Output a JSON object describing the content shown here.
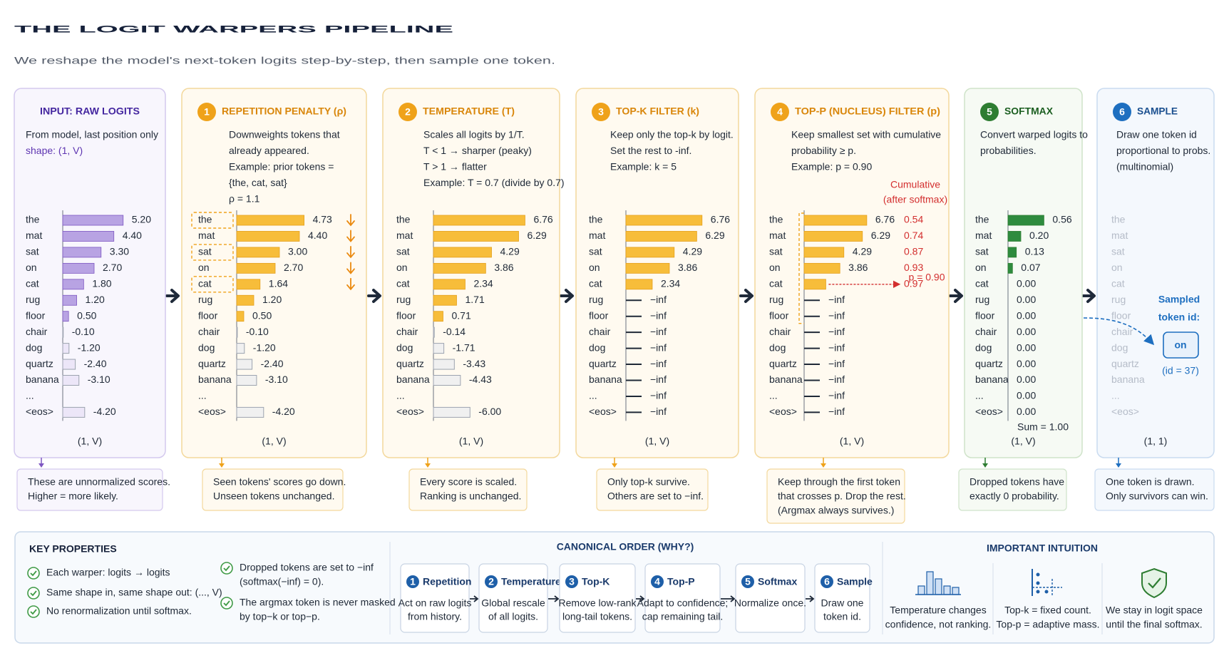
{
  "title": "THE LOGIT WARPERS PIPELINE",
  "subtitle": "We reshape the model's next-token logits step-by-step, then sample one token.",
  "tokens": [
    "the",
    "mat",
    "sat",
    "on",
    "cat",
    "rug",
    "floor",
    "chair",
    "dog",
    "quartz",
    "banana",
    "...",
    "<eos>"
  ],
  "panels": [
    {
      "heading": "INPUT: RAW LOGITS",
      "lines": [
        "From model, last position only",
        "shape: (1, V)"
      ],
      "values": [
        5.2,
        4.4,
        3.3,
        2.7,
        1.8,
        1.2,
        0.5,
        -0.1,
        -1.2,
        -2.4,
        -3.1,
        null,
        -4.2
      ],
      "value_labels": [
        "5.20",
        "4.40",
        "3.30",
        "2.70",
        "1.80",
        "1.20",
        "0.50",
        "-0.10",
        "-1.20",
        "-2.40",
        "-3.10",
        null,
        "-4.20"
      ],
      "shape": "(1, V)",
      "note": [
        "These are unnormalized scores.",
        "Higher = more likely."
      ]
    },
    {
      "step": "1",
      "heading": "REPETITION PENALTY (ρ)",
      "lines": [
        "Downweights tokens that",
        "already appeared.",
        "Example: prior tokens =",
        "{the, cat, sat}",
        "ρ = 1.1"
      ],
      "values": [
        4.73,
        4.4,
        3.0,
        2.7,
        1.64,
        1.2,
        0.5,
        -0.1,
        -1.2,
        -2.4,
        -3.1,
        null,
        -4.2
      ],
      "value_labels": [
        "4.73",
        "4.40",
        "3.00",
        "2.70",
        "1.64",
        "1.20",
        "0.50",
        "-0.10",
        "-1.20",
        "-2.40",
        "-3.10",
        null,
        "-4.20"
      ],
      "shape": "(1, V)",
      "note": [
        "Seen tokens' scores go down.",
        "Unseen tokens unchanged."
      ]
    },
    {
      "step": "2",
      "heading": "TEMPERATURE (T)",
      "lines": [
        "Scales all logits by 1/T.",
        "T < 1  →  sharper (peaky)",
        "T > 1  →  flatter",
        "Example: T = 0.7 (divide by 0.7)"
      ],
      "values": [
        6.76,
        6.29,
        4.29,
        3.86,
        2.34,
        1.71,
        0.71,
        -0.14,
        -1.71,
        -3.43,
        -4.43,
        null,
        -6.0
      ],
      "value_labels": [
        "6.76",
        "6.29",
        "4.29",
        "3.86",
        "2.34",
        "1.71",
        "0.71",
        "-0.14",
        "-1.71",
        "-3.43",
        "-4.43",
        null,
        "-6.00"
      ],
      "shape": "(1, V)",
      "note": [
        "Every score is scaled.",
        "Ranking is unchanged."
      ]
    },
    {
      "step": "3",
      "heading": "TOP-K FILTER (k)",
      "lines": [
        "Keep only the top-k by logit.",
        "Set the rest to -inf.",
        "Example: k = 5"
      ],
      "values": [
        6.76,
        6.29,
        4.29,
        3.86,
        2.34,
        null,
        null,
        null,
        null,
        null,
        null,
        null,
        null
      ],
      "value_labels": [
        "6.76",
        "6.29",
        "4.29",
        "3.86",
        "2.34",
        "−inf",
        "−inf",
        "−inf",
        "−inf",
        "−inf",
        "−inf",
        "−inf",
        "−inf"
      ],
      "shape": "(1, V)",
      "note": [
        "Only top-k survive.",
        "Others are set to −inf."
      ]
    },
    {
      "step": "4",
      "heading": "TOP-P (NUCLEUS) FILTER (p)",
      "lines": [
        "Keep smallest set with cumulative",
        "probability ≥ p.",
        "Example: p = 0.90"
      ],
      "cumulative_heading": [
        "Cumulative",
        "(after softmax)"
      ],
      "values": [
        6.76,
        6.29,
        4.29,
        3.86,
        2.34,
        null,
        null,
        null,
        null,
        null,
        null,
        null,
        null
      ],
      "value_labels": [
        "6.76",
        "6.29",
        "4.29",
        "3.86",
        null,
        "−inf",
        "−inf",
        "−inf",
        "−inf",
        "−inf",
        "−inf",
        "−inf",
        "−inf"
      ],
      "cumulative": [
        0.54,
        0.74,
        0.87,
        0.93,
        0.97
      ],
      "threshold": "p = 0.90",
      "shape": "(1, V)",
      "note": [
        "Keep through the first token",
        "that crosses p. Drop the rest.",
        "(Argmax always survives.)"
      ]
    },
    {
      "step": "5",
      "heading": "SOFTMAX",
      "lines": [
        "Convert warped logits to",
        "probabilities."
      ],
      "values": [
        0.56,
        0.2,
        0.13,
        0.07,
        0,
        0,
        0,
        0,
        0,
        0,
        0,
        0,
        0
      ],
      "value_labels": [
        "0.56",
        "0.20",
        "0.13",
        "0.07",
        "0.00",
        "0.00",
        "0.00",
        "0.00",
        "0.00",
        "0.00",
        "0.00",
        "0.00",
        "0.00"
      ],
      "sum": "Sum = 1.00",
      "shape": "(1, V)",
      "note": [
        "Dropped tokens have",
        "exactly 0 probability."
      ]
    },
    {
      "step": "6",
      "heading": "SAMPLE",
      "lines": [
        "Draw one token id",
        "proportional to probs.",
        "(multinomial)"
      ],
      "sampled_heading": [
        "Sampled",
        "token id:"
      ],
      "sampled_token": "on",
      "sampled_id": "(id = 37)",
      "shape": "(1, 1)",
      "note": [
        "One token is drawn.",
        "Only survivors can win."
      ]
    }
  ],
  "key_properties": {
    "heading": "KEY PROPERTIES",
    "items": [
      [
        "Each warper: logits → logits"
      ],
      [
        "Same shape in, same shape out: (..., V)"
      ],
      [
        "No renormalization until softmax."
      ],
      [
        "Dropped tokens are set to −inf",
        "(softmax(−inf) = 0)."
      ],
      [
        "The argmax token is never masked",
        "by top−k or top−p."
      ]
    ]
  },
  "canonical_order": {
    "heading": "CANONICAL ORDER (WHY?)",
    "steps": [
      {
        "number": "1",
        "name": "Repetition",
        "lines": [
          "Act on raw logits",
          "from history."
        ]
      },
      {
        "number": "2",
        "name": "Temperature",
        "lines": [
          "Global rescale",
          "of all logits."
        ]
      },
      {
        "number": "3",
        "name": "Top-K",
        "lines": [
          "Remove low-rank",
          "long-tail tokens."
        ]
      },
      {
        "number": "4",
        "name": "Top-P",
        "lines": [
          "Adapt to confidence;",
          "cap remaining tail."
        ]
      },
      {
        "number": "5",
        "name": "Softmax",
        "lines": [
          "Normalize once."
        ]
      },
      {
        "number": "6",
        "name": "Sample",
        "lines": [
          "Draw one",
          "token id."
        ]
      }
    ]
  },
  "intuition": {
    "heading": "IMPORTANT INTUITION",
    "items": [
      [
        "Temperature changes",
        "confidence, not ranking."
      ],
      [
        "Top-k = fixed count.",
        "Top-p = adaptive mass."
      ],
      [
        "We stay in logit space",
        "until the final softmax."
      ]
    ]
  }
}
